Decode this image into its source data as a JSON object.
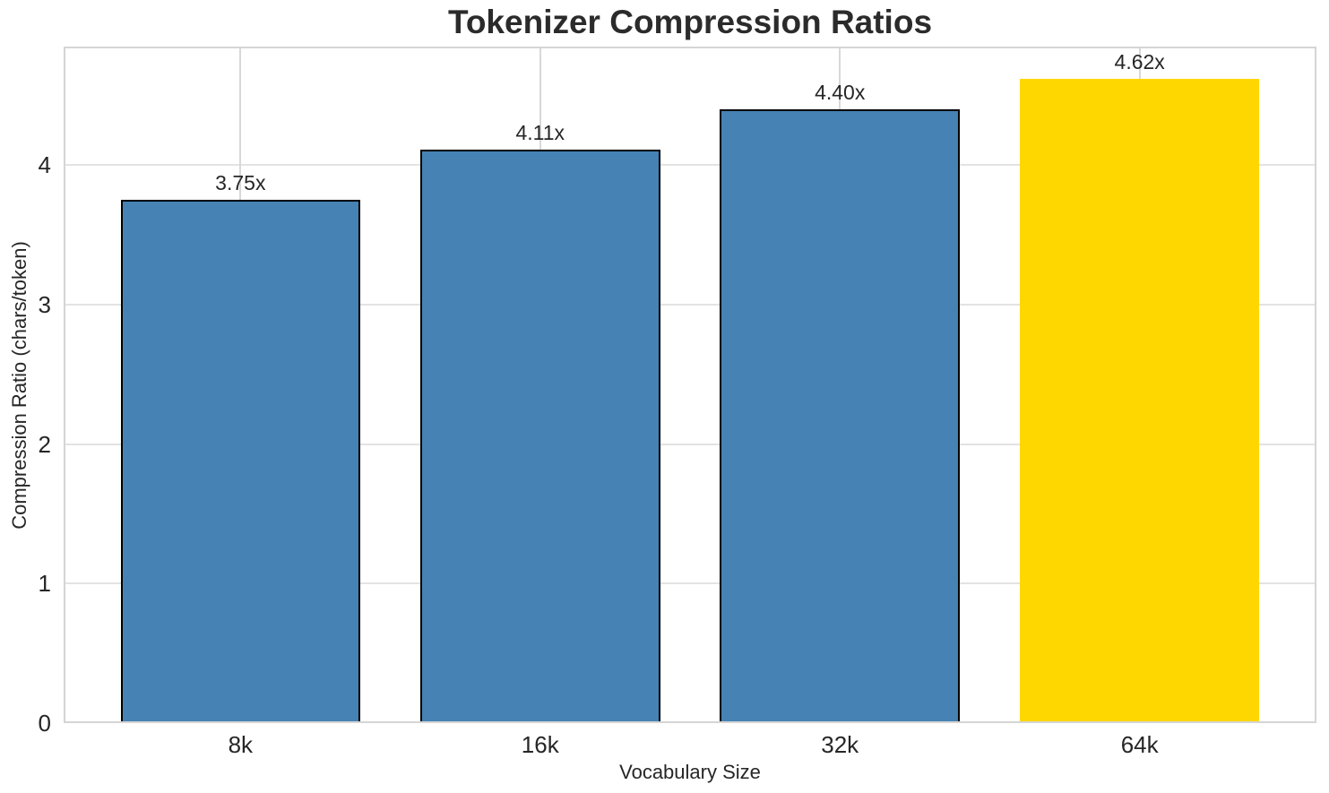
{
  "chart_data": {
    "type": "bar",
    "title": "Tokenizer Compression Ratios",
    "xlabel": "Vocabulary Size",
    "ylabel": "Compression Ratio (chars/token)",
    "categories": [
      "8k",
      "16k",
      "32k",
      "64k"
    ],
    "values": [
      3.75,
      4.11,
      4.4,
      4.62
    ],
    "bar_labels": [
      "3.75x",
      "4.11x",
      "4.40x",
      "4.62x"
    ],
    "bar_colors": [
      "#4682B4",
      "#4682B4",
      "#4682B4",
      "#FFD700"
    ],
    "bar_edge_colors": [
      "#000000",
      "#000000",
      "#000000",
      "none"
    ],
    "highlight_index": 3,
    "y_ticks": [
      "0",
      "1",
      "2",
      "3",
      "4"
    ],
    "y_tick_values": [
      0,
      1,
      2,
      3,
      4
    ],
    "ylim": [
      0,
      4.85
    ],
    "xlim": [
      -0.59,
      3.59
    ],
    "bar_width": 0.8,
    "grid": true,
    "legend": "none",
    "colors": {
      "grid_h": "#E3E3E3",
      "grid_v": "#D8D8D8",
      "spine": "#D5D5D5",
      "text": "#262626",
      "title": "#2B2B2B",
      "background": "#FFFFFF"
    }
  }
}
